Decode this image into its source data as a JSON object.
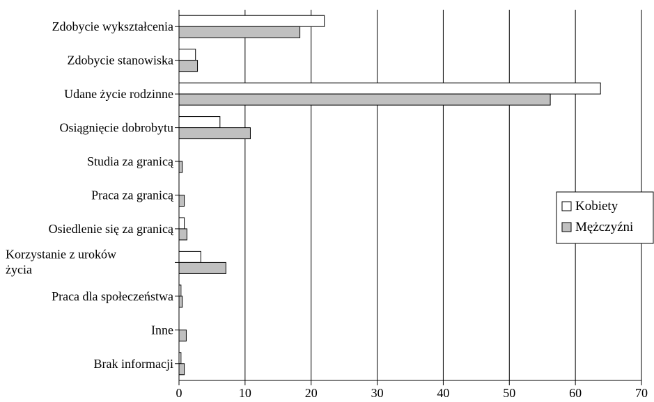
{
  "chart_data": {
    "type": "bar",
    "orientation": "horizontal",
    "categories": [
      [
        "Zdobycie wykształcenia"
      ],
      [
        "Zdobycie stanowiska"
      ],
      [
        "Udane życie rodzinne"
      ],
      [
        "Osiągnięcie dobrobytu"
      ],
      [
        "Studia za granicą"
      ],
      [
        "Praca za granicą"
      ],
      [
        "Osiedlenie się za granicą"
      ],
      [
        "Korzystanie z uroków",
        "życia"
      ],
      [
        "Praca dla społeczeństwa"
      ],
      [
        "Inne"
      ],
      [
        "Brak informacji"
      ]
    ],
    "series": [
      {
        "name": "Kobiety",
        "color": "#ffffff",
        "values": [
          22.0,
          2.5,
          63.8,
          6.2,
          0.0,
          0.0,
          0.8,
          3.3,
          0.3,
          0.0,
          0.3
        ]
      },
      {
        "name": "Mężczyźni",
        "color": "#c0c0c0",
        "values": [
          18.3,
          2.8,
          56.2,
          10.8,
          0.5,
          0.8,
          1.2,
          7.1,
          0.5,
          1.1,
          0.8
        ]
      }
    ],
    "xlim": [
      0,
      70
    ],
    "xticks": [
      "0",
      "10",
      "20",
      "30",
      "40",
      "50",
      "60",
      "70"
    ],
    "grid": "vertical",
    "legend": "right"
  }
}
